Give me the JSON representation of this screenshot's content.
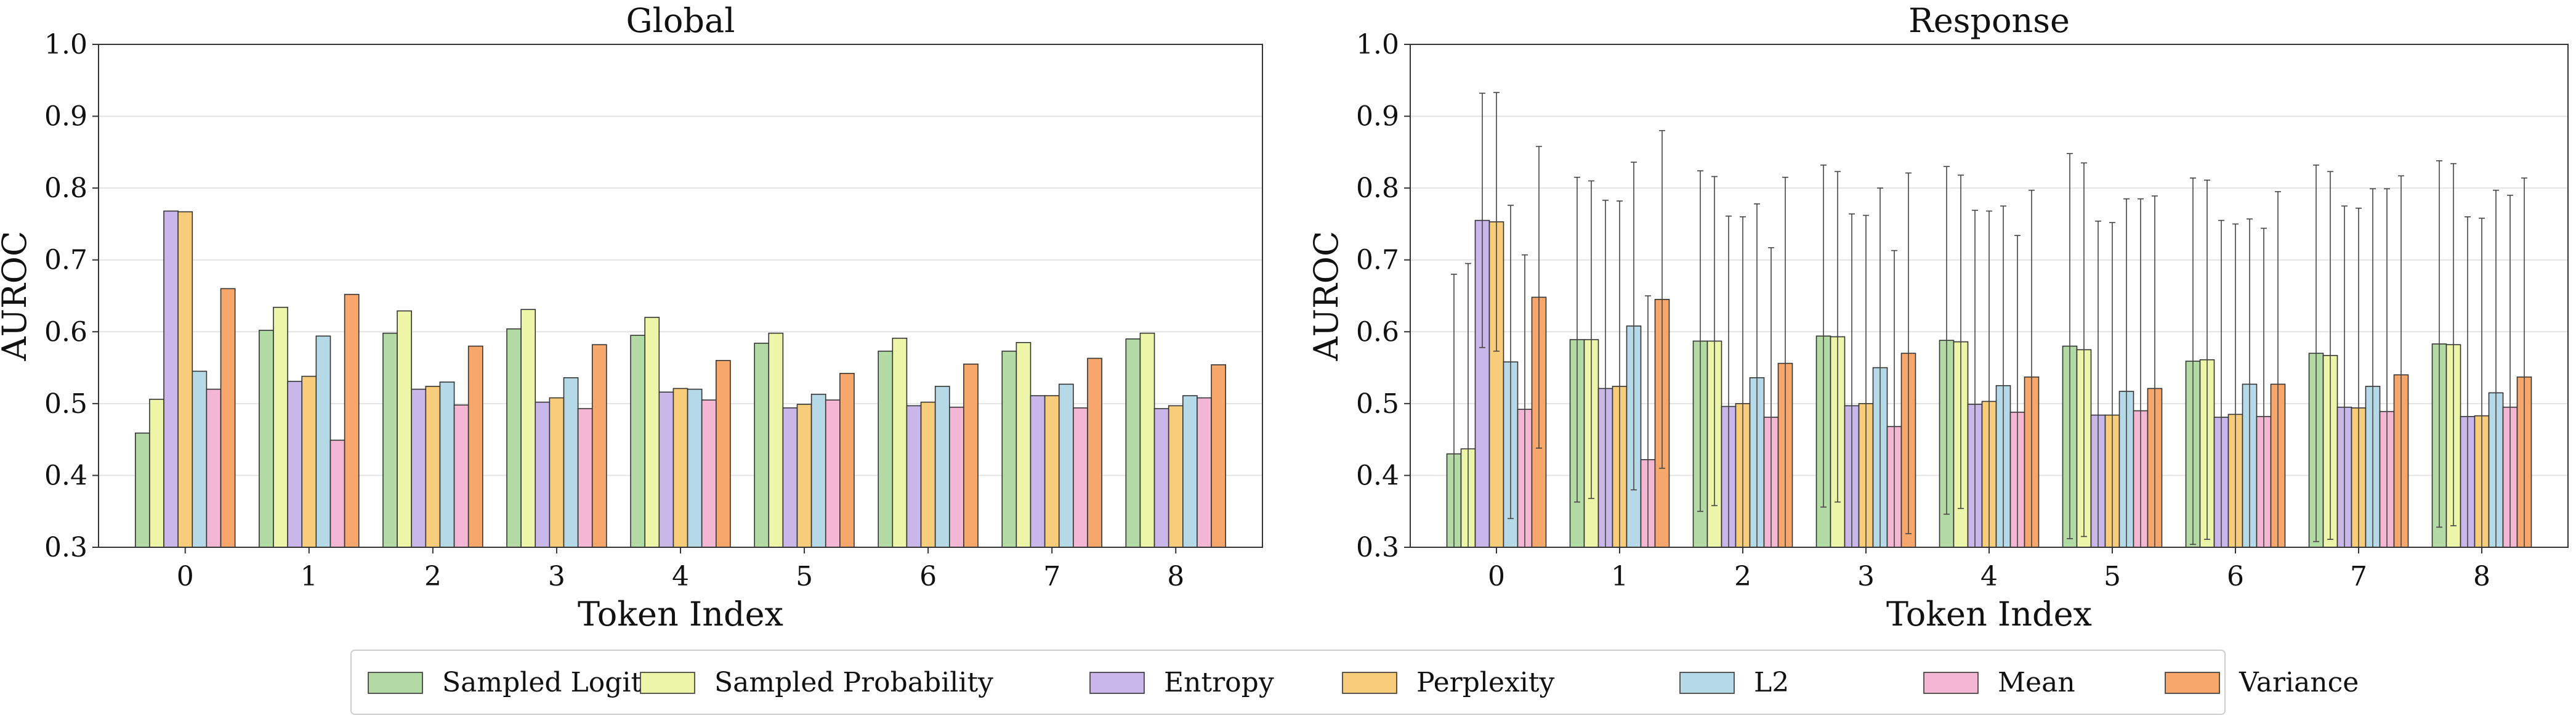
{
  "legend": {
    "items": [
      {
        "label": "Sampled Logit",
        "color": "#b3d9a4"
      },
      {
        "label": "Sampled Probability",
        "color": "#ecf5a8"
      },
      {
        "label": "Entropy",
        "color": "#c9b7ea"
      },
      {
        "label": "Perplexity",
        "color": "#f7cd7b"
      },
      {
        "label": "L2",
        "color": "#b6d9e8"
      },
      {
        "label": "Mean",
        "color": "#f4b7d3"
      },
      {
        "label": "Variance",
        "color": "#f7a76b"
      }
    ]
  },
  "chart_data": [
    {
      "type": "bar",
      "title": "Global",
      "xlabel": "Token Index",
      "ylabel": "AUROC",
      "ylim": [
        0.3,
        1.0
      ],
      "yticks": [
        "0.3",
        "0.4",
        "0.5",
        "0.6",
        "0.7",
        "0.8",
        "0.9",
        "1.0"
      ],
      "categories": [
        "0",
        "1",
        "2",
        "3",
        "4",
        "5",
        "6",
        "7",
        "8"
      ],
      "grid": "horizontal",
      "series": [
        {
          "name": "Sampled Logit",
          "values": [
            0.459,
            0.602,
            0.598,
            0.604,
            0.595,
            0.584,
            0.573,
            0.573,
            0.59
          ]
        },
        {
          "name": "Sampled Probability",
          "values": [
            0.506,
            0.634,
            0.629,
            0.631,
            0.62,
            0.598,
            0.591,
            0.585,
            0.598
          ]
        },
        {
          "name": "Entropy",
          "values": [
            0.768,
            0.531,
            0.52,
            0.502,
            0.516,
            0.494,
            0.497,
            0.511,
            0.493
          ]
        },
        {
          "name": "Perplexity",
          "values": [
            0.767,
            0.538,
            0.524,
            0.508,
            0.521,
            0.499,
            0.502,
            0.511,
            0.497
          ]
        },
        {
          "name": "L2",
          "values": [
            0.545,
            0.594,
            0.53,
            0.536,
            0.52,
            0.513,
            0.524,
            0.527,
            0.511
          ]
        },
        {
          "name": "Mean",
          "values": [
            0.52,
            0.449,
            0.498,
            0.493,
            0.505,
            0.505,
            0.495,
            0.494,
            0.508
          ]
        },
        {
          "name": "Variance",
          "values": [
            0.66,
            0.652,
            0.58,
            0.582,
            0.56,
            0.542,
            0.555,
            0.563,
            0.554
          ]
        }
      ]
    },
    {
      "type": "bar",
      "title": "Response",
      "xlabel": "Token Index",
      "ylabel": "AUROC",
      "ylim": [
        0.3,
        1.0
      ],
      "yticks": [
        "0.3",
        "0.4",
        "0.5",
        "0.6",
        "0.7",
        "0.8",
        "0.9",
        "1.0"
      ],
      "categories": [
        "0",
        "1",
        "2",
        "3",
        "4",
        "5",
        "6",
        "7",
        "8"
      ],
      "grid": "horizontal",
      "error_bars": true,
      "series": [
        {
          "name": "Sampled Logit",
          "values": [
            0.43,
            0.589,
            0.587,
            0.594,
            0.588,
            0.58,
            0.559,
            0.57,
            0.583
          ],
          "errors": [
            0.25,
            0.226,
            0.237,
            0.238,
            0.242,
            0.268,
            0.255,
            0.262,
            0.255
          ]
        },
        {
          "name": "Sampled Probability",
          "values": [
            0.437,
            0.589,
            0.587,
            0.593,
            0.586,
            0.575,
            0.561,
            0.567,
            0.582
          ],
          "errors": [
            0.258,
            0.221,
            0.229,
            0.23,
            0.232,
            0.26,
            0.25,
            0.256,
            0.252
          ]
        },
        {
          "name": "Entropy",
          "values": [
            0.755,
            0.521,
            0.496,
            0.497,
            0.499,
            0.484,
            0.481,
            0.495,
            0.482
          ],
          "errors": [
            0.177,
            0.262,
            0.265,
            0.267,
            0.27,
            0.27,
            0.274,
            0.28,
            0.278
          ]
        },
        {
          "name": "Perplexity",
          "values": [
            0.753,
            0.524,
            0.5,
            0.5,
            0.503,
            0.484,
            0.485,
            0.494,
            0.483
          ],
          "errors": [
            0.18,
            0.258,
            0.26,
            0.262,
            0.265,
            0.268,
            0.265,
            0.278,
            0.275
          ]
        },
        {
          "name": "L2",
          "values": [
            0.558,
            0.608,
            0.536,
            0.55,
            0.525,
            0.517,
            0.527,
            0.524,
            0.515
          ],
          "errors": [
            0.218,
            0.228,
            0.242,
            0.25,
            0.25,
            0.268,
            0.23,
            0.275,
            0.282
          ]
        },
        {
          "name": "Mean",
          "values": [
            0.492,
            0.422,
            0.481,
            0.468,
            0.488,
            0.49,
            0.482,
            0.489,
            0.495
          ],
          "errors": [
            0.215,
            0.228,
            0.236,
            0.245,
            0.246,
            0.295,
            0.262,
            0.31,
            0.295
          ]
        },
        {
          "name": "Variance",
          "values": [
            0.648,
            0.645,
            0.556,
            0.57,
            0.537,
            0.521,
            0.527,
            0.54,
            0.537
          ],
          "errors": [
            0.21,
            0.235,
            0.259,
            0.251,
            0.26,
            0.268,
            0.268,
            0.277,
            0.277
          ]
        }
      ]
    }
  ]
}
